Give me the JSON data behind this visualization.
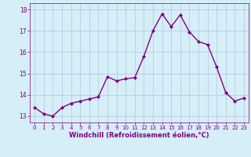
{
  "x": [
    0,
    1,
    2,
    3,
    4,
    5,
    6,
    7,
    8,
    9,
    10,
    11,
    12,
    13,
    14,
    15,
    16,
    17,
    18,
    19,
    20,
    21,
    22,
    23
  ],
  "y": [
    13.4,
    13.1,
    13.0,
    13.4,
    13.6,
    13.7,
    13.8,
    13.9,
    14.85,
    14.65,
    14.75,
    14.8,
    15.8,
    17.0,
    17.8,
    17.2,
    17.75,
    16.95,
    16.5,
    16.35,
    15.3,
    14.1,
    13.7,
    13.85
  ],
  "line_color": "#800080",
  "marker": "D",
  "marker_size": 2,
  "linewidth": 1.0,
  "bg_color": "#d6eef8",
  "grid_color": "#b0c8d8",
  "xlabel": "Windchill (Refroidissement éolien,°C)",
  "xlabel_color": "#800080",
  "tick_color": "#800080",
  "label_color": "#800080",
  "ylim": [
    12.7,
    18.3
  ],
  "xlim": [
    -0.5,
    23.5
  ],
  "yticks": [
    13,
    14,
    15,
    16,
    17,
    18
  ],
  "xticks": [
    0,
    1,
    2,
    3,
    4,
    5,
    6,
    7,
    8,
    9,
    10,
    11,
    12,
    13,
    14,
    15,
    16,
    17,
    18,
    19,
    20,
    21,
    22,
    23
  ]
}
